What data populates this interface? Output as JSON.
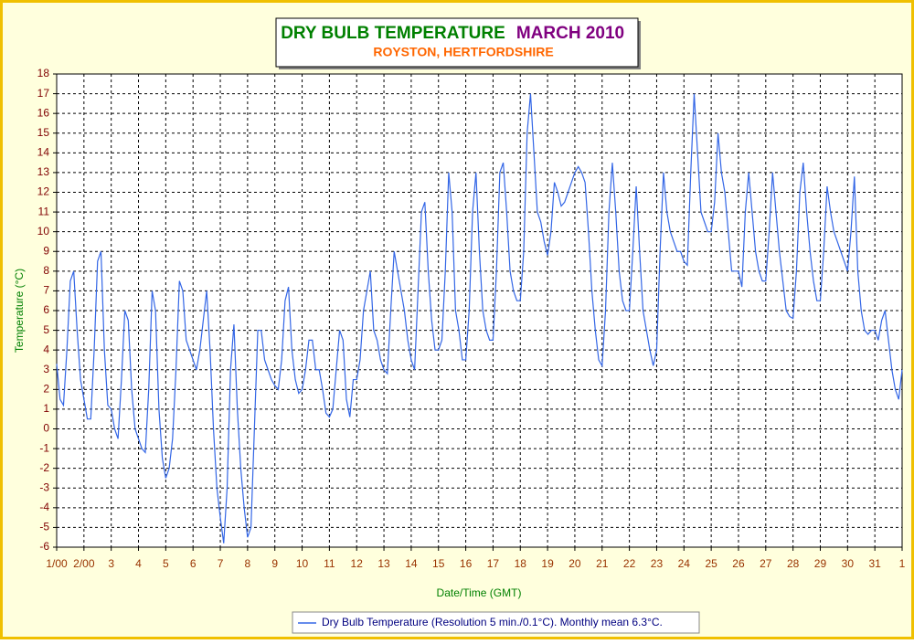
{
  "chart_data": {
    "type": "line",
    "title": "DRY BULB TEMPERATURE",
    "title_period": "MARCH 2010",
    "subtitle": "ROYSTON, HERTFORDSHIRE",
    "x_label": "Date/Time (GMT)",
    "y_label": "Temperature (°C)",
    "grid": true,
    "xlim": [
      1,
      32
    ],
    "ylim": [
      -6,
      18
    ],
    "xticks": [
      {
        "value": 1,
        "label": "1/00"
      },
      {
        "value": 2,
        "label": "2/00"
      },
      3,
      4,
      5,
      6,
      7,
      8,
      9,
      10,
      11,
      12,
      13,
      14,
      15,
      16,
      17,
      18,
      19,
      20,
      21,
      22,
      23,
      24,
      25,
      26,
      27,
      28,
      29,
      30,
      31,
      {
        "value": 32,
        "label": "1"
      }
    ],
    "yticks": [
      -6,
      -5,
      -4,
      -3,
      -2,
      -1,
      0,
      1,
      2,
      3,
      4,
      5,
      6,
      7,
      8,
      9,
      10,
      11,
      12,
      13,
      14,
      15,
      16,
      17,
      18
    ],
    "x": [
      1,
      1.125,
      1.25,
      1.375,
      1.5,
      1.625,
      1.75,
      1.875,
      2,
      2.125,
      2.25,
      2.375,
      2.5,
      2.625,
      2.75,
      2.875,
      3,
      3.125,
      3.25,
      3.375,
      3.5,
      3.625,
      3.75,
      3.875,
      4,
      4.125,
      4.25,
      4.375,
      4.5,
      4.625,
      4.75,
      4.875,
      5,
      5.125,
      5.25,
      5.375,
      5.5,
      5.625,
      5.75,
      5.875,
      6,
      6.125,
      6.25,
      6.375,
      6.5,
      6.625,
      6.75,
      6.875,
      7,
      7.125,
      7.25,
      7.375,
      7.5,
      7.625,
      7.75,
      7.875,
      8,
      8.125,
      8.25,
      8.375,
      8.5,
      8.625,
      8.75,
      8.875,
      9,
      9.125,
      9.25,
      9.375,
      9.5,
      9.625,
      9.75,
      9.875,
      10,
      10.125,
      10.25,
      10.375,
      10.5,
      10.625,
      10.75,
      10.875,
      11,
      11.125,
      11.25,
      11.375,
      11.5,
      11.625,
      11.75,
      11.875,
      12,
      12.125,
      12.25,
      12.375,
      12.5,
      12.625,
      12.75,
      12.875,
      13,
      13.125,
      13.25,
      13.375,
      13.5,
      13.625,
      13.75,
      13.875,
      14,
      14.125,
      14.25,
      14.375,
      14.5,
      14.625,
      14.75,
      14.875,
      15,
      15.125,
      15.25,
      15.375,
      15.5,
      15.625,
      15.75,
      15.875,
      16,
      16.125,
      16.25,
      16.375,
      16.5,
      16.625,
      16.75,
      16.875,
      17,
      17.125,
      17.25,
      17.375,
      17.5,
      17.625,
      17.75,
      17.875,
      18,
      18.125,
      18.25,
      18.375,
      18.5,
      18.625,
      18.75,
      18.875,
      19,
      19.125,
      19.25,
      19.375,
      19.5,
      19.625,
      19.75,
      19.875,
      20,
      20.125,
      20.25,
      20.375,
      20.5,
      20.625,
      20.75,
      20.875,
      21,
      21.125,
      21.25,
      21.375,
      21.5,
      21.625,
      21.75,
      21.875,
      22,
      22.125,
      22.25,
      22.375,
      22.5,
      22.625,
      22.75,
      22.875,
      23,
      23.125,
      23.25,
      23.375,
      23.5,
      23.625,
      23.75,
      23.875,
      24,
      24.125,
      24.25,
      24.375,
      24.5,
      24.625,
      24.75,
      24.875,
      25,
      25.125,
      25.25,
      25.375,
      25.5,
      25.625,
      25.75,
      25.875,
      26,
      26.125,
      26.25,
      26.375,
      26.5,
      26.625,
      26.75,
      26.875,
      27,
      27.125,
      27.25,
      27.375,
      27.5,
      27.625,
      27.75,
      27.875,
      28,
      28.125,
      28.25,
      28.375,
      28.5,
      28.625,
      28.75,
      28.875,
      29,
      29.125,
      29.25,
      29.375,
      29.5,
      29.625,
      29.75,
      29.875,
      30,
      30.125,
      30.25,
      30.375,
      30.5,
      30.625,
      30.75,
      30.875,
      31,
      31.125,
      31.25,
      31.375,
      31.5,
      31.625,
      31.75,
      31.875,
      32
    ],
    "series": [
      {
        "name": "Dry Bulb Temperature (Resolution 5 min./0.1°C). Monthly mean 6.3°C.",
        "color": "#3366e6",
        "values": [
          3.3,
          1.5,
          1.2,
          4,
          7.5,
          8,
          5,
          2.5,
          1.5,
          0.5,
          0.5,
          4,
          8.5,
          9,
          4,
          1.2,
          1,
          0,
          -0.5,
          2.5,
          6,
          5.5,
          2,
          0,
          -0.5,
          -1,
          -1.2,
          2,
          7,
          6,
          1,
          -1.5,
          -2.5,
          -2,
          -0.5,
          3,
          7.5,
          7,
          4.5,
          4,
          3.5,
          3,
          4,
          5.5,
          7,
          4,
          0,
          -3,
          -4.5,
          -5.8,
          -3,
          3,
          5.3,
          1,
          -2,
          -4,
          -5.5,
          -5,
          0,
          5,
          5,
          3.5,
          3,
          2.5,
          2.2,
          2,
          3.5,
          6.5,
          7.2,
          4,
          2.5,
          1.8,
          2,
          3,
          4.5,
          4.5,
          3,
          3,
          2,
          0.8,
          0.6,
          1,
          3,
          5,
          4.5,
          1.5,
          0.6,
          2.5,
          2.5,
          3.5,
          6,
          7,
          8,
          5,
          4.5,
          3.5,
          3,
          2.8,
          6,
          9,
          8,
          7,
          6,
          4.5,
          3.5,
          3,
          7,
          11,
          11.5,
          8,
          5.5,
          4,
          4,
          4.5,
          8,
          13,
          11,
          6,
          5,
          3.5,
          3.5,
          6,
          11,
          13,
          9,
          6,
          5,
          4.5,
          4.5,
          8,
          13,
          13.5,
          11,
          8,
          7,
          6.5,
          6.5,
          9,
          15,
          17,
          14,
          11,
          10.5,
          9.5,
          8.8,
          10,
          12.5,
          12,
          11.3,
          11.5,
          12,
          12.5,
          13,
          13.3,
          13,
          12.5,
          10,
          7,
          5,
          3.5,
          3.2,
          6,
          11,
          13.5,
          11,
          8,
          6.5,
          6,
          6,
          9,
          12.3,
          9,
          6,
          5,
          4,
          3.2,
          4,
          9,
          13,
          11,
          10,
          9.5,
          9,
          9,
          8.5,
          8.3,
          13,
          17,
          14,
          11,
          10.5,
          10,
          10,
          11.5,
          15,
          13,
          12,
          10,
          8,
          8,
          8,
          7.2,
          11,
          13,
          11,
          9,
          8,
          7.5,
          7.5,
          10,
          13,
          11,
          9,
          7.5,
          6,
          5.7,
          5.6,
          8,
          12,
          13.5,
          11,
          9,
          7.5,
          6.5,
          6.5,
          9,
          12.3,
          11,
          10,
          9.5,
          9,
          8.5,
          8,
          10,
          12.8,
          8,
          6,
          5,
          4.8,
          5,
          5,
          4.5,
          5.5,
          6,
          4.5,
          3,
          2,
          1.5,
          3
        ]
      }
    ]
  }
}
